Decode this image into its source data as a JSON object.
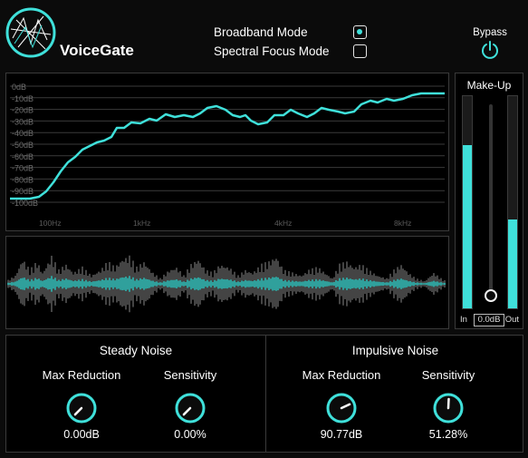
{
  "app": {
    "title": "VoiceGate"
  },
  "modes": [
    {
      "label": "Broadband Mode",
      "checked": true
    },
    {
      "label": "Spectral Focus Mode",
      "checked": false
    }
  ],
  "bypass": {
    "label": "Bypass",
    "icon": "power-icon"
  },
  "spectrum": {
    "db_labels": [
      "0dB",
      "-10dB",
      "-20dB",
      "-30dB",
      "-40dB",
      "-50dB",
      "-60dB",
      "-70dB",
      "-80dB",
      "-90dB",
      "-100dB"
    ],
    "freq_labels": [
      "100Hz",
      "1kHz",
      "4kHz",
      "8kHz"
    ],
    "accent": "#3fe0da"
  },
  "makeup": {
    "title": "Make-Up",
    "in_label": "In",
    "out_label": "Out",
    "value": "0.0dB",
    "in_level": 0.77,
    "out_level": 0.42,
    "fader_position": 0.0
  },
  "steady": {
    "title": "Steady Noise",
    "max_reduction": {
      "label": "Max Reduction",
      "value": "0.00dB",
      "level": 0.0
    },
    "sensitivity": {
      "label": "Sensitivity",
      "value": "0.00%",
      "level": 0.0
    }
  },
  "impulsive": {
    "title": "Impulsive Noise",
    "max_reduction": {
      "label": "Max Reduction",
      "value": "90.77dB",
      "level": 0.74
    },
    "sensitivity": {
      "label": "Sensitivity",
      "value": "51.28%",
      "level": 0.51
    }
  }
}
